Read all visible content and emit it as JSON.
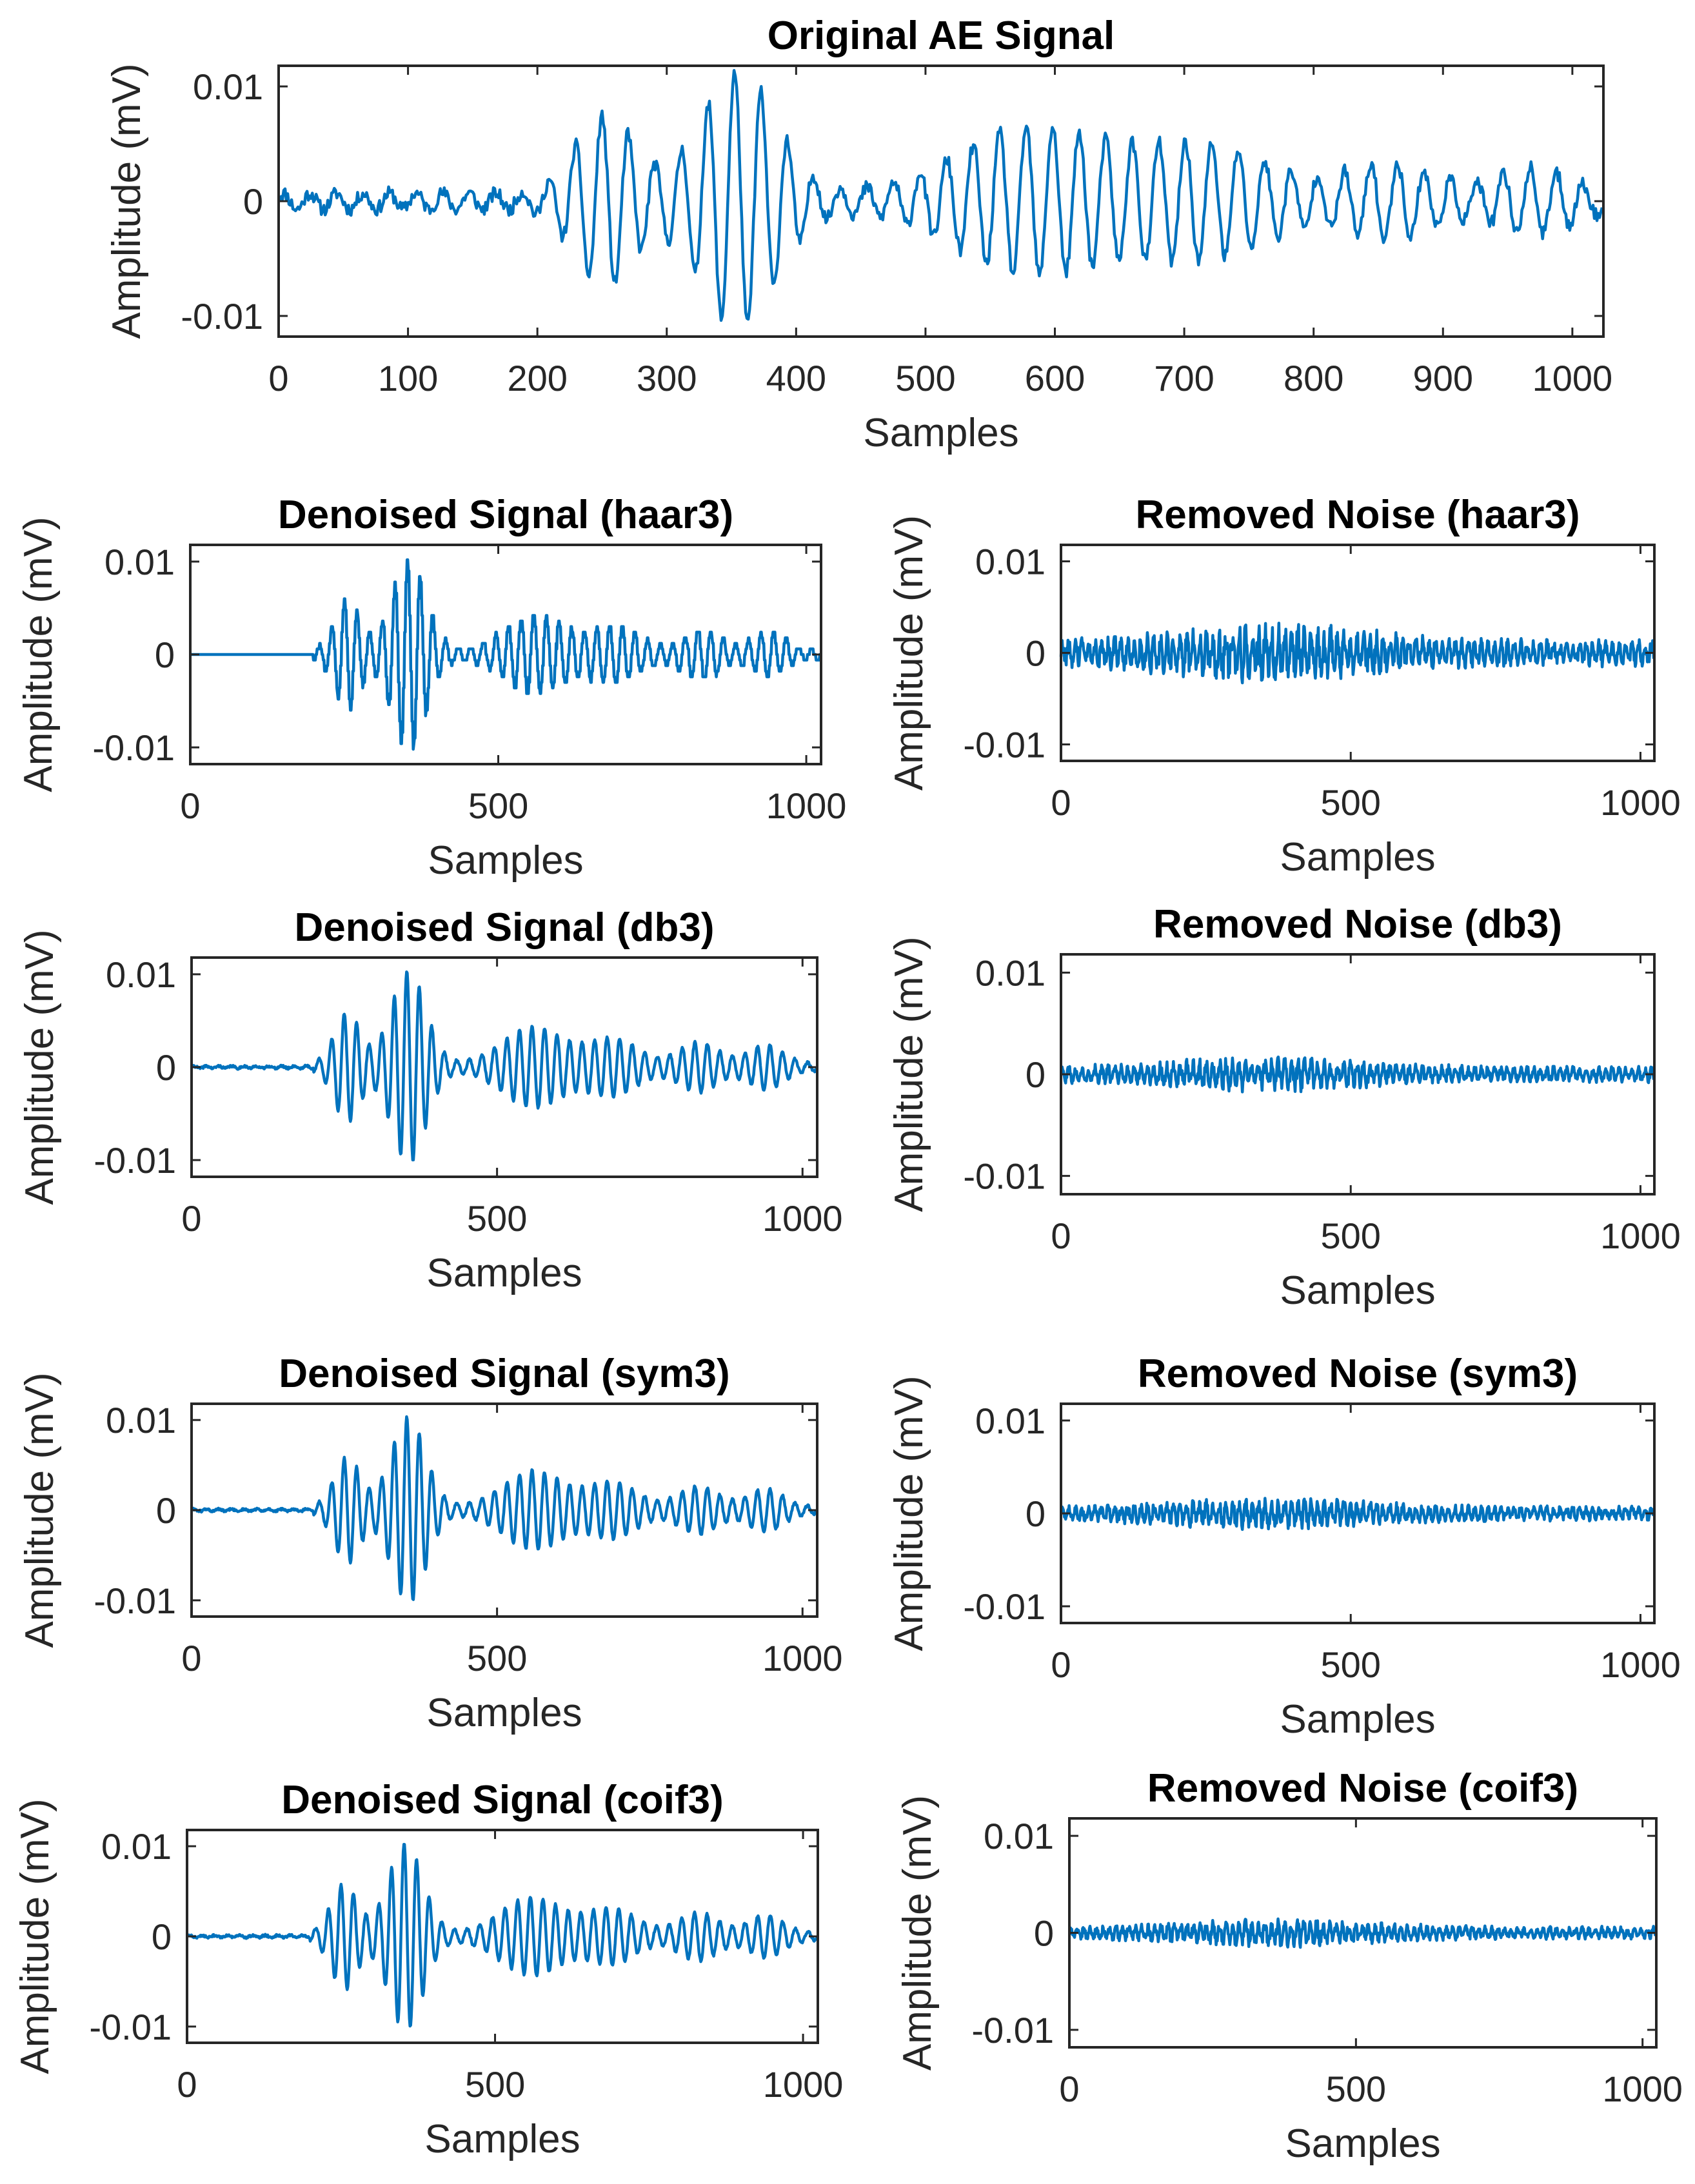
{
  "colors": {
    "line": "#0072bd",
    "axes": "#262626",
    "background": "#ffffff"
  },
  "chart_data": [
    {
      "id": "original",
      "type": "line",
      "title": "Original AE Signal",
      "xlabel": "Samples",
      "ylabel": "Amplitude (mV)",
      "xlim": [
        0,
        1024
      ],
      "ylim": [
        -0.0118,
        0.0118
      ],
      "xticks": [
        0,
        100,
        200,
        300,
        400,
        500,
        600,
        700,
        800,
        900,
        1000
      ],
      "xtick_labels": [
        "0",
        "100",
        "200",
        "300",
        "400",
        "500",
        "600",
        "700",
        "800",
        "900",
        "1000"
      ],
      "yticks": [
        0.01,
        0,
        -0.01
      ],
      "ytick_labels": [
        "0.01",
        "0",
        "-0.01"
      ],
      "signal": {
        "kind": "original",
        "seed": 11
      }
    },
    {
      "id": "denoised-haar3",
      "type": "line",
      "title": "Denoised Signal (haar3)",
      "xlabel": "Samples",
      "ylabel": "Amplitude (mV)",
      "xlim": [
        0,
        1024
      ],
      "ylim": [
        -0.0118,
        0.0118
      ],
      "xticks": [
        0,
        500,
        1000
      ],
      "xtick_labels": [
        "0",
        "500",
        "1000"
      ],
      "yticks": [
        0.01,
        0,
        -0.01
      ],
      "ytick_labels": [
        "0.01",
        "0",
        "-0.01"
      ],
      "signal": {
        "kind": "denoised-haar",
        "seed": 21
      }
    },
    {
      "id": "noise-haar3",
      "type": "line",
      "title": "Removed Noise (haar3)",
      "xlabel": "Samples",
      "ylabel": "Amplitude (mV)",
      "xlim": [
        0,
        1024
      ],
      "ylim": [
        -0.0118,
        0.0118
      ],
      "xticks": [
        0,
        500,
        1000
      ],
      "xtick_labels": [
        "0",
        "500",
        "1000"
      ],
      "yticks": [
        0.01,
        0,
        -0.01
      ],
      "ytick_labels": [
        "0.01",
        "0",
        "-0.01"
      ],
      "signal": {
        "kind": "noise",
        "scale": 0.0032,
        "seed": 31
      }
    },
    {
      "id": "denoised-db3",
      "type": "line",
      "title": "Denoised Signal (db3)",
      "xlabel": "Samples",
      "ylabel": "Amplitude (mV)",
      "xlim": [
        0,
        1024
      ],
      "ylim": [
        -0.0118,
        0.0118
      ],
      "xticks": [
        0,
        500,
        1000
      ],
      "xtick_labels": [
        "0",
        "500",
        "1000"
      ],
      "yticks": [
        0.01,
        0,
        -0.01
      ],
      "ytick_labels": [
        "0.01",
        "0",
        "-0.01"
      ],
      "signal": {
        "kind": "denoised-smooth",
        "seed": 41
      }
    },
    {
      "id": "noise-db3",
      "type": "line",
      "title": "Removed Noise (db3)",
      "xlabel": "Samples",
      "ylabel": "Amplitude (mV)",
      "xlim": [
        0,
        1024
      ],
      "ylim": [
        -0.0118,
        0.0118
      ],
      "xticks": [
        0,
        500,
        1000
      ],
      "xtick_labels": [
        "0",
        "500",
        "1000"
      ],
      "yticks": [
        0.01,
        0,
        -0.01
      ],
      "ytick_labels": [
        "0.01",
        "0",
        "-0.01"
      ],
      "signal": {
        "kind": "noise",
        "scale": 0.0017,
        "seed": 51
      }
    },
    {
      "id": "denoised-sym3",
      "type": "line",
      "title": "Denoised Signal (sym3)",
      "xlabel": "Samples",
      "ylabel": "Amplitude (mV)",
      "xlim": [
        0,
        1024
      ],
      "ylim": [
        -0.0118,
        0.0118
      ],
      "xticks": [
        0,
        500,
        1000
      ],
      "xtick_labels": [
        "0",
        "500",
        "1000"
      ],
      "yticks": [
        0.01,
        0,
        -0.01
      ],
      "ytick_labels": [
        "0.01",
        "0",
        "-0.01"
      ],
      "signal": {
        "kind": "denoised-smooth",
        "seed": 61
      }
    },
    {
      "id": "noise-sym3",
      "type": "line",
      "title": "Removed Noise (sym3)",
      "xlabel": "Samples",
      "ylabel": "Amplitude (mV)",
      "xlim": [
        0,
        1024
      ],
      "ylim": [
        -0.0118,
        0.0118
      ],
      "xticks": [
        0,
        500,
        1000
      ],
      "xtick_labels": [
        "0",
        "500",
        "1000"
      ],
      "yticks": [
        0.01,
        0,
        -0.01
      ],
      "ytick_labels": [
        "0.01",
        "0",
        "-0.01"
      ],
      "signal": {
        "kind": "noise",
        "scale": 0.0017,
        "seed": 71
      }
    },
    {
      "id": "denoised-coif3",
      "type": "line",
      "title": "Denoised Signal (coif3)",
      "xlabel": "Samples",
      "ylabel": "Amplitude (mV)",
      "xlim": [
        0,
        1024
      ],
      "ylim": [
        -0.0118,
        0.0118
      ],
      "xticks": [
        0,
        500,
        1000
      ],
      "xtick_labels": [
        "0",
        "500",
        "1000"
      ],
      "yticks": [
        0.01,
        0,
        -0.01
      ],
      "ytick_labels": [
        "0.01",
        "0",
        "-0.01"
      ],
      "signal": {
        "kind": "denoised-smooth",
        "seed": 81
      }
    },
    {
      "id": "noise-coif3",
      "type": "line",
      "title": "Removed Noise (coif3)",
      "xlabel": "Samples",
      "ylabel": "Amplitude (mV)",
      "xlim": [
        0,
        1024
      ],
      "ylim": [
        -0.0118,
        0.0118
      ],
      "xticks": [
        0,
        500,
        1000
      ],
      "xtick_labels": [
        "0",
        "500",
        "1000"
      ],
      "yticks": [
        0.01,
        0,
        -0.01
      ],
      "ytick_labels": [
        "0.01",
        "0",
        "-0.01"
      ],
      "signal": {
        "kind": "noise",
        "scale": 0.0014,
        "seed": 91
      }
    }
  ]
}
